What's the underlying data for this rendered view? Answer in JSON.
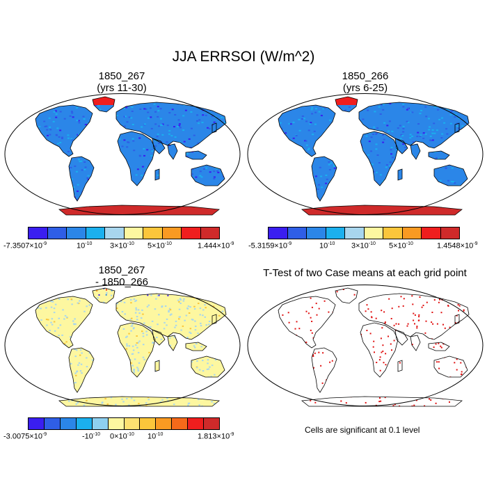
{
  "title": "JJA ERRSOI (W/m^2)",
  "panels": {
    "tl": {
      "line1": "1850_267",
      "line2": "(yrs 11-30)"
    },
    "tr": {
      "line1": "1850_266",
      "line2": "(yrs 6-25)"
    },
    "bl": {
      "line1": "1850_267",
      "line2": "- 1850_266"
    },
    "br": {
      "line1": "T-Test of two Case means at each grid point"
    }
  },
  "colorbars": {
    "top_colors": [
      "#3a1ef0",
      "#2f5ee6",
      "#2b86e8",
      "#1bb0ee",
      "#a8d6ee",
      "#fdf7a0",
      "#fbc63b",
      "#f99a22",
      "#ef1e1e",
      "#cf2a2a"
    ],
    "bottom_colors": [
      "#3a1ef0",
      "#2f5ee6",
      "#2b86e8",
      "#1bb0ee",
      "#8ed0f0",
      "#fdf7a0",
      "#fde171",
      "#fbc63b",
      "#f99a22",
      "#f66a1a",
      "#ef1e1e",
      "#cf2a2a"
    ],
    "tl_labels": {
      "min": "-7.3507×10",
      "min_exp": "-9",
      "a": "10",
      "a_exp": "-10",
      "b": "3×10",
      "b_exp": "-10",
      "c": "5×10",
      "c_exp": "-10",
      "max": "1.444×10",
      "max_exp": "-9"
    },
    "tr_labels": {
      "min": "-5.3159×10",
      "min_exp": "-9",
      "a": "10",
      "a_exp": "-10",
      "b": "3×10",
      "b_exp": "-10",
      "c": "5×10",
      "c_exp": "-10",
      "max": "1.4548×10",
      "max_exp": "-9"
    },
    "bl_labels": {
      "min": "-3.0075×10",
      "min_exp": "-9",
      "a": "-10",
      "a_exp": "-10",
      "b": "0×10",
      "b_exp": "-10",
      "c": "10",
      "c_exp": "-10",
      "max": "1.813×10",
      "max_exp": "-9"
    }
  },
  "significance_note": "Cells are significant at 0.1 level"
}
